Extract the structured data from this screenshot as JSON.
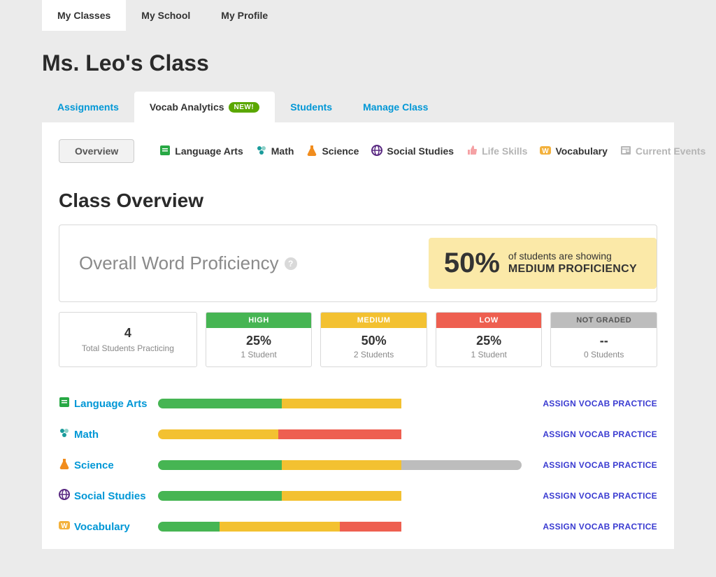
{
  "colors": {
    "green": "#46b553",
    "yellow": "#f3c131",
    "red": "#ee5f50",
    "gray": "#bdbdbd",
    "link_blue": "#0097d6",
    "assign_blue": "#3a3bd1",
    "banner_bg": "#fbe9a8",
    "icon_green": "#27a844",
    "icon_teal": "#1a9b9b",
    "icon_orange": "#f18d1e",
    "icon_purple": "#5a2a82",
    "icon_pink": "#f5a2a5",
    "icon_vocab": "#f3b13c",
    "icon_muted": "#b5b5b5"
  },
  "top_tabs": [
    {
      "label": "My Classes",
      "active": true
    },
    {
      "label": "My School",
      "active": false
    },
    {
      "label": "My Profile",
      "active": false
    }
  ],
  "page_title": "Ms. Leo's Class",
  "sub_tabs": [
    {
      "label": "Assignments",
      "active": false
    },
    {
      "label": "Vocab Analytics",
      "active": true,
      "badge": "NEW!"
    },
    {
      "label": "Students",
      "active": false
    },
    {
      "label": "Manage Class",
      "active": false
    }
  ],
  "subject_bar": {
    "overview_label": "Overview",
    "items": [
      {
        "label": "Language Arts",
        "icon": "book",
        "color_key": "icon_green"
      },
      {
        "label": "Math",
        "icon": "dots",
        "color_key": "icon_teal"
      },
      {
        "label": "Science",
        "icon": "flask",
        "color_key": "icon_orange"
      },
      {
        "label": "Social Studies",
        "icon": "globe",
        "color_key": "icon_purple"
      },
      {
        "label": "Life Skills",
        "icon": "thumbs",
        "color_key": "icon_pink",
        "muted": true
      },
      {
        "label": "Vocabulary",
        "icon": "w",
        "color_key": "icon_vocab"
      },
      {
        "label": "Current Events",
        "icon": "news",
        "color_key": "icon_muted",
        "muted": true
      }
    ]
  },
  "section_title": "Class Overview",
  "owp": {
    "title": "Overall Word Proficiency",
    "banner_pct": "50%",
    "banner_line1": "of students are showing",
    "banner_line2": "MEDIUM PROFICIENCY"
  },
  "totals": {
    "num": "4",
    "label": "Total Students Practicing"
  },
  "stat_cards": [
    {
      "head": "HIGH",
      "pct": "25%",
      "sub": "1 Student",
      "bg_key": "green"
    },
    {
      "head": "MEDIUM",
      "pct": "50%",
      "sub": "2 Students",
      "bg_key": "yellow"
    },
    {
      "head": "LOW",
      "pct": "25%",
      "sub": "1 Student",
      "bg_key": "red"
    },
    {
      "head": "NOT GRADED",
      "pct": "--",
      "sub": "0 Students",
      "bg_key": "gray",
      "head_class": "ng"
    }
  ],
  "assign_label": "ASSIGN VOCAB PRACTICE",
  "subject_rows": [
    {
      "label": "Language Arts",
      "icon": "book",
      "color_key": "icon_green",
      "segments": [
        {
          "c": "green",
          "w": 34
        },
        {
          "c": "yellow",
          "w": 33
        }
      ]
    },
    {
      "label": "Math",
      "icon": "dots",
      "color_key": "icon_teal",
      "segments": [
        {
          "c": "yellow",
          "w": 33
        },
        {
          "c": "red",
          "w": 34
        }
      ]
    },
    {
      "label": "Science",
      "icon": "flask",
      "color_key": "icon_orange",
      "segments": [
        {
          "c": "green",
          "w": 34
        },
        {
          "c": "yellow",
          "w": 33
        },
        {
          "c": "gray",
          "w": 33
        }
      ]
    },
    {
      "label": "Social Studies",
      "icon": "globe",
      "color_key": "icon_purple",
      "segments": [
        {
          "c": "green",
          "w": 34
        },
        {
          "c": "yellow",
          "w": 33
        }
      ]
    },
    {
      "label": "Vocabulary",
      "icon": "w",
      "color_key": "icon_vocab",
      "segments": [
        {
          "c": "green",
          "w": 17
        },
        {
          "c": "yellow",
          "w": 33
        },
        {
          "c": "red",
          "w": 17
        }
      ]
    }
  ]
}
